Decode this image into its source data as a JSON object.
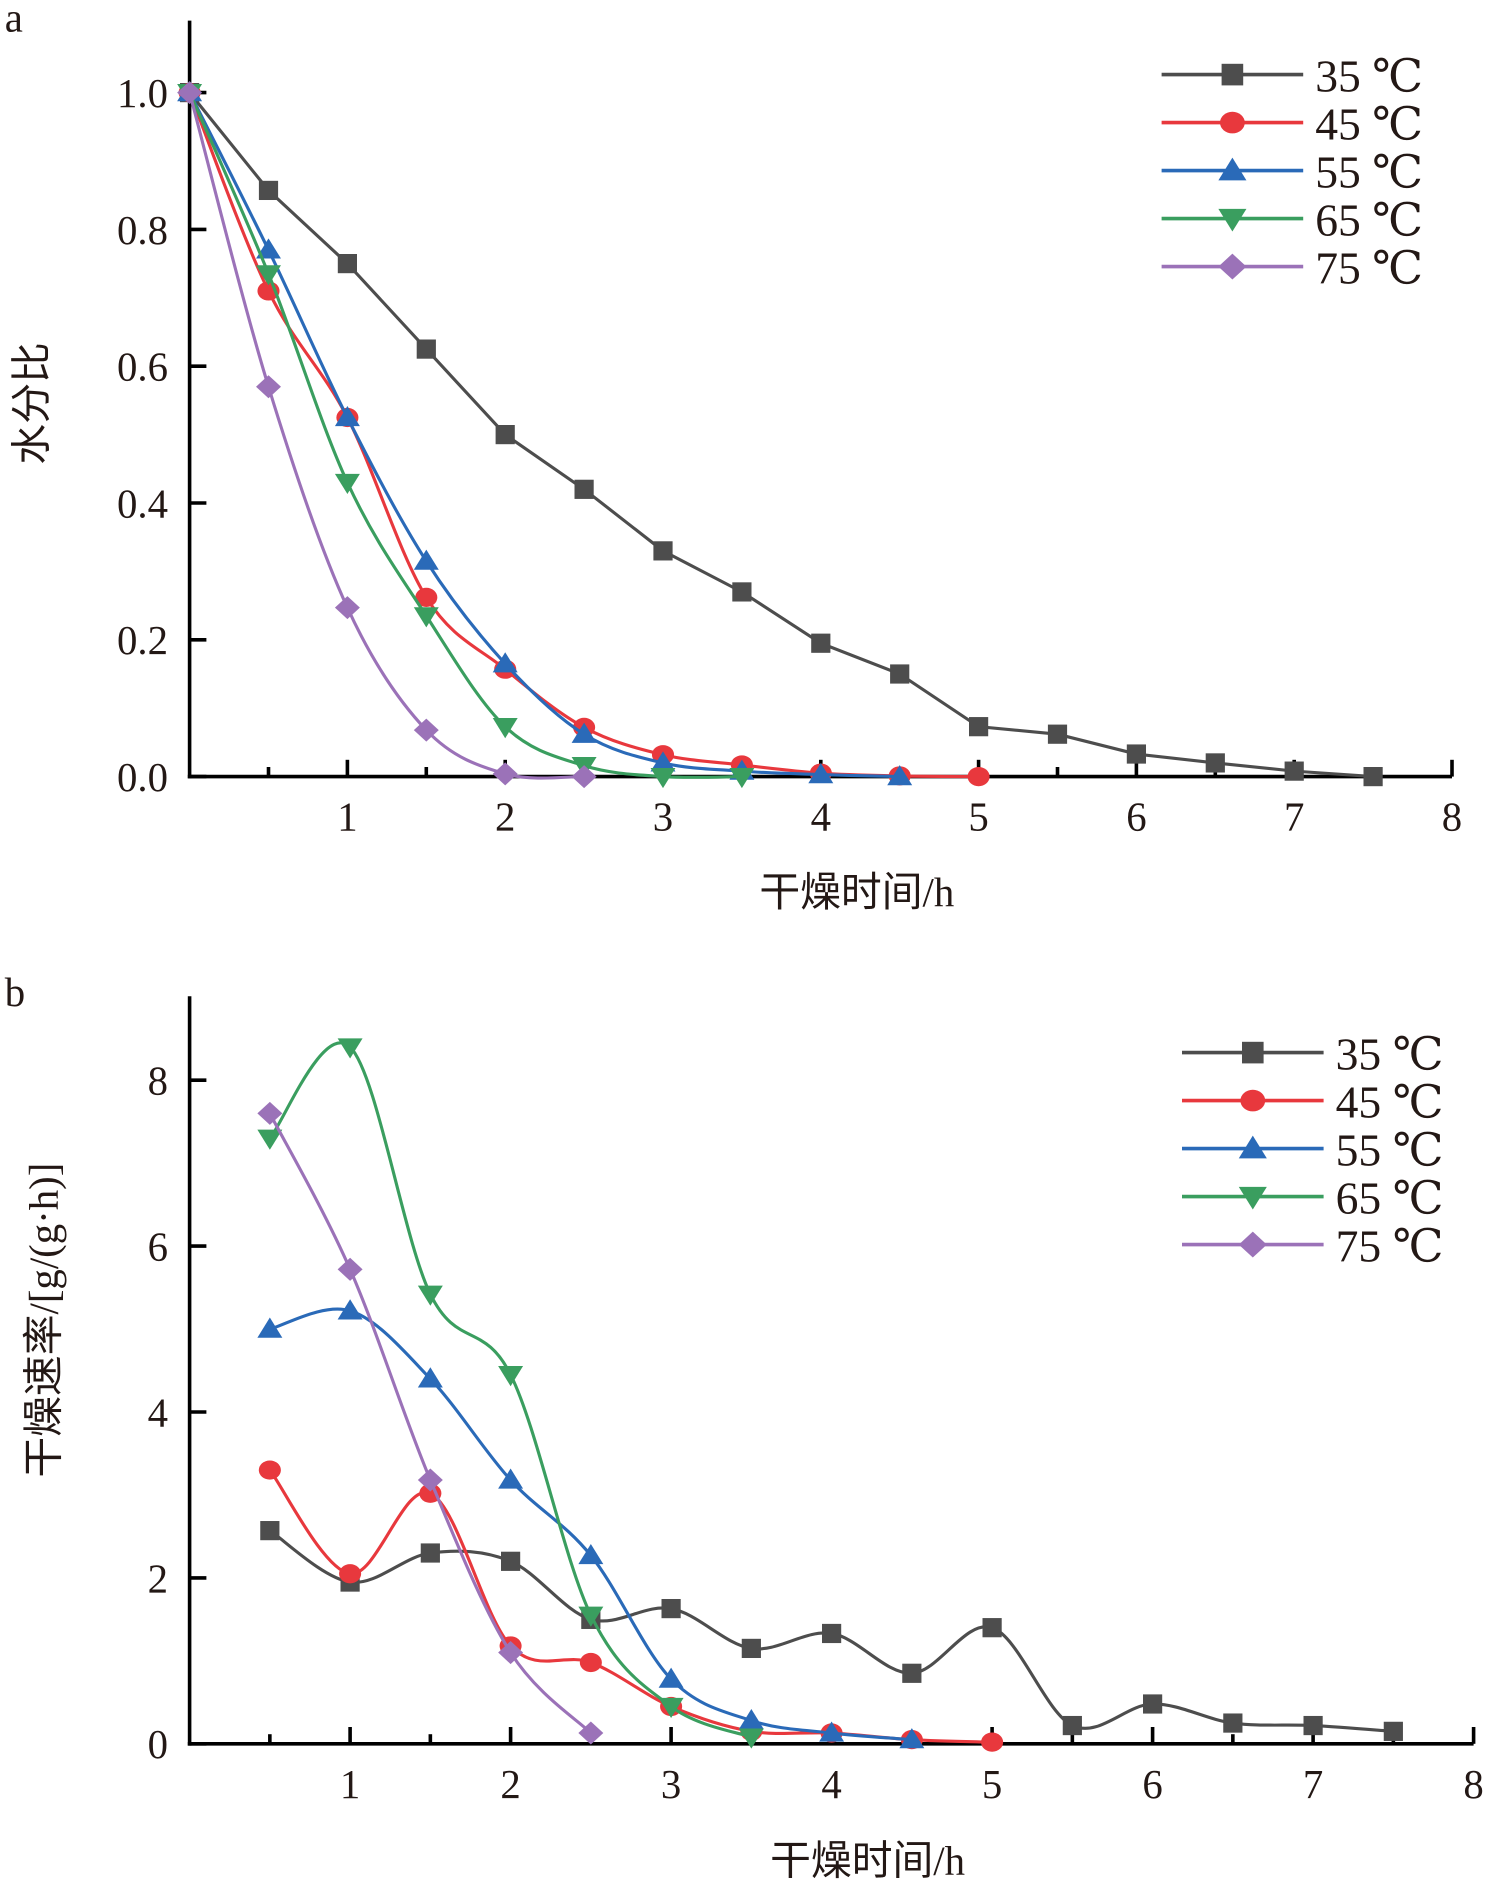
{
  "chart_data": [
    {
      "panel": "a",
      "type": "line",
      "title": "",
      "xlabel": "干燥时间/h",
      "ylabel": "水分比",
      "xlim": [
        0,
        8
      ],
      "ylim": [
        0,
        1.1
      ],
      "xticks": [
        "1",
        "2",
        "3",
        "4",
        "5",
        "6",
        "7",
        "8"
      ],
      "yticks": [
        "0.0",
        "0.2",
        "0.4",
        "0.6",
        "0.8",
        "1.0"
      ],
      "grid": false,
      "legend_position": "top-right",
      "series": [
        {
          "name": "35 ℃",
          "color": "#4d4d4d",
          "marker": "square",
          "x": [
            0,
            0.5,
            1,
            1.5,
            2,
            2.5,
            3,
            3.5,
            4,
            4.5,
            5,
            5.5,
            6,
            6.5,
            7,
            7.5
          ],
          "y": [
            1.0,
            0.857,
            0.75,
            0.625,
            0.5,
            0.42,
            0.33,
            0.27,
            0.195,
            0.15,
            0.073,
            0.062,
            0.033,
            0.02,
            0.008,
            0.0
          ]
        },
        {
          "name": "45 ℃",
          "color": "#e8383d",
          "marker": "circle",
          "x": [
            0,
            0.5,
            1,
            1.5,
            2,
            2.5,
            3,
            3.5,
            4,
            4.5,
            5
          ],
          "y": [
            1.0,
            0.71,
            0.525,
            0.262,
            0.157,
            0.072,
            0.032,
            0.017,
            0.005,
            0.001,
            0.0
          ]
        },
        {
          "name": "55 ℃",
          "color": "#2a6ab8",
          "marker": "triangle-up",
          "x": [
            0,
            0.5,
            1,
            1.5,
            2,
            2.5,
            3,
            3.5,
            4,
            4.5
          ],
          "y": [
            1.0,
            0.77,
            0.525,
            0.315,
            0.165,
            0.062,
            0.02,
            0.008,
            0.003,
            0.0
          ]
        },
        {
          "name": "65 ℃",
          "color": "#3a9e5f",
          "marker": "triangle-down",
          "x": [
            0,
            0.5,
            1,
            1.5,
            2,
            2.5,
            3,
            3.5
          ],
          "y": [
            1.0,
            0.735,
            0.43,
            0.235,
            0.073,
            0.016,
            0.0,
            0.0
          ]
        },
        {
          "name": "75 ℃",
          "color": "#9b72b8",
          "marker": "diamond",
          "x": [
            0,
            0.5,
            1,
            1.5,
            2,
            2.5
          ],
          "y": [
            1.0,
            0.57,
            0.247,
            0.068,
            0.004,
            0.0
          ]
        }
      ]
    },
    {
      "panel": "b",
      "type": "line",
      "title": "",
      "xlabel": "干燥时间/h",
      "ylabel": "干燥速率/[g/(g·h)]",
      "xlim": [
        0,
        8
      ],
      "ylim": [
        0,
        9
      ],
      "xticks": [
        "1",
        "2",
        "3",
        "4",
        "5",
        "6",
        "7",
        "8"
      ],
      "yticks": [
        "0",
        "2",
        "4",
        "6",
        "8"
      ],
      "grid": false,
      "legend_position": "top-right",
      "series": [
        {
          "name": "35 ℃",
          "color": "#4d4d4d",
          "marker": "square",
          "x": [
            0.5,
            1,
            1.5,
            2,
            2.5,
            3,
            3.5,
            4,
            4.5,
            5,
            5.5,
            6,
            6.5,
            7,
            7.5
          ],
          "y": [
            2.57,
            1.95,
            2.3,
            2.2,
            1.5,
            1.63,
            1.15,
            1.33,
            0.85,
            1.4,
            0.22,
            0.48,
            0.25,
            0.22,
            0.15
          ]
        },
        {
          "name": "45 ℃",
          "color": "#e8383d",
          "marker": "circle",
          "x": [
            0.5,
            1,
            1.5,
            2,
            2.5,
            3,
            3.5,
            4,
            4.5,
            5
          ],
          "y": [
            3.3,
            2.05,
            3.02,
            1.18,
            0.98,
            0.45,
            0.15,
            0.13,
            0.05,
            0.02
          ]
        },
        {
          "name": "55 ℃",
          "color": "#2a6ab8",
          "marker": "triangle-up",
          "x": [
            0.5,
            1,
            1.5,
            2,
            2.5,
            3,
            3.5,
            4,
            4.5
          ],
          "y": [
            5.0,
            5.22,
            4.4,
            3.18,
            2.27,
            0.78,
            0.28,
            0.13,
            0.05
          ]
        },
        {
          "name": "65 ℃",
          "color": "#3a9e5f",
          "marker": "triangle-down",
          "x": [
            0.5,
            1,
            1.5,
            2,
            2.5,
            3,
            3.5
          ],
          "y": [
            7.3,
            8.4,
            5.42,
            4.45,
            1.55,
            0.45,
            0.08
          ]
        },
        {
          "name": "75 ℃",
          "color": "#9b72b8",
          "marker": "diamond",
          "x": [
            0.5,
            1,
            1.5,
            2,
            2.5
          ],
          "y": [
            7.6,
            5.72,
            3.18,
            1.1,
            0.13
          ]
        }
      ]
    }
  ],
  "labels": {
    "panel_a": "a",
    "panel_b": "b"
  }
}
